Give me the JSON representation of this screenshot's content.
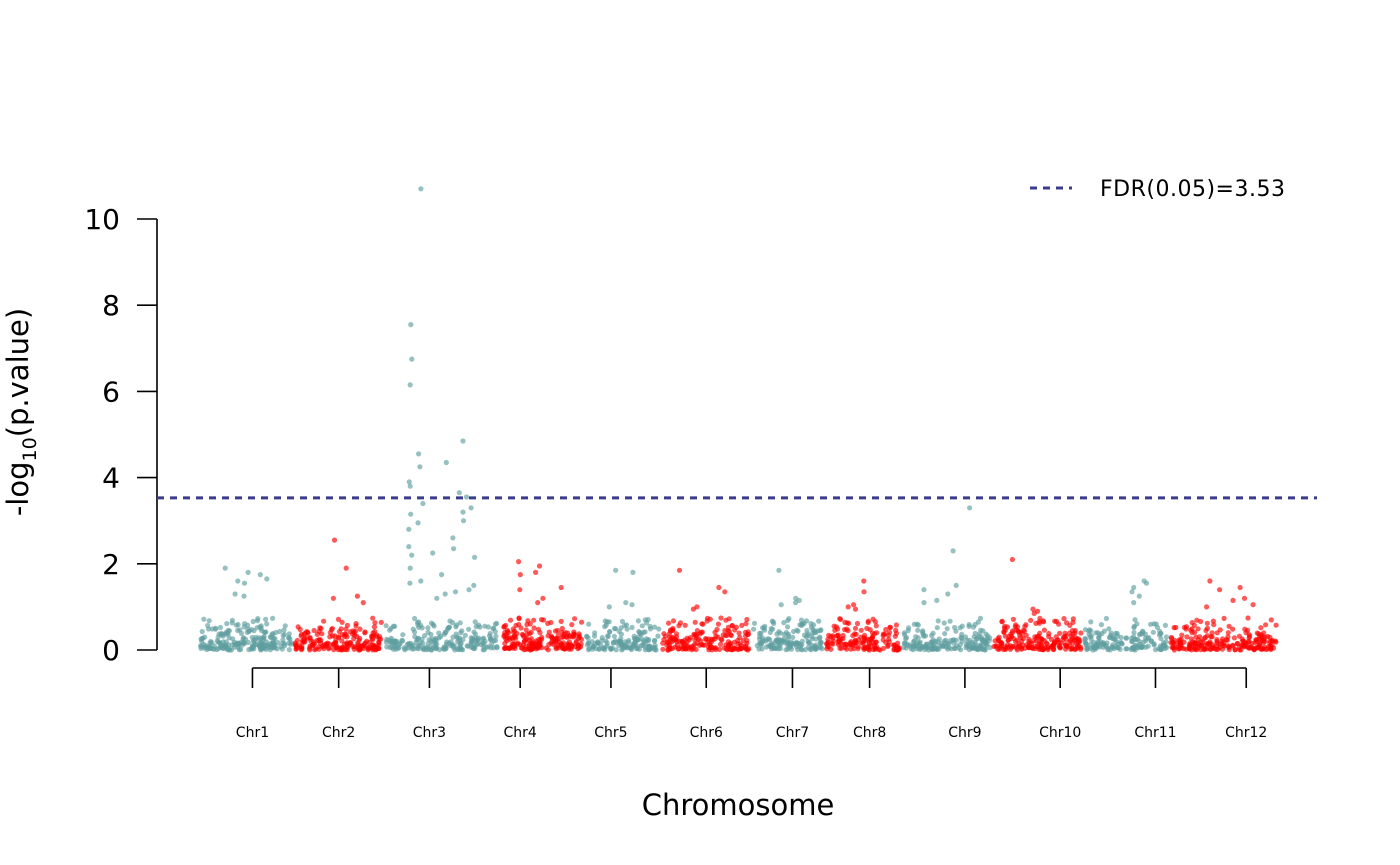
{
  "chart_data": {
    "type": "scatter",
    "title": "",
    "xlabel": "Chromosome",
    "ylabel": {
      "prefix": "-log",
      "subscript": "10",
      "suffix": "(p.value)"
    },
    "ylim": [
      0,
      11
    ],
    "yticks": [
      0,
      2,
      4,
      6,
      8,
      10
    ],
    "ytick_labels": [
      "0",
      "2",
      "4",
      "6",
      "8",
      "10"
    ],
    "grid": false,
    "colors": {
      "odd_chr": "#5F9EA0",
      "even_chr": "#FF0000",
      "threshold": "#3B3B8F"
    },
    "threshold": {
      "value": 3.53,
      "label": "FDR(0.05)=3.53",
      "legend_position": "top-right"
    },
    "chromosomes": [
      {
        "name": "Chr1",
        "start": 0,
        "end": 1.05,
        "n": 210,
        "peaks": [
          1.75,
          1.65,
          1.6,
          1.55,
          1.9,
          1.8,
          1.3,
          1.25
        ]
      },
      {
        "name": "Chr2",
        "start": 1.05,
        "end": 2.05,
        "n": 190,
        "peaks": [
          2.55,
          1.9,
          1.25,
          1.2,
          1.1
        ]
      },
      {
        "name": "Chr3",
        "start": 2.05,
        "end": 3.35,
        "n": 210,
        "peaks": [
          10.7,
          7.55,
          6.75,
          6.15,
          4.85,
          4.55,
          4.35,
          4.25,
          3.9,
          3.8,
          3.65,
          3.55,
          3.4,
          3.3,
          3.2,
          3.15,
          3.0,
          2.95,
          2.8,
          2.6,
          2.4,
          2.35,
          2.25,
          2.2,
          2.15,
          1.9,
          1.75,
          1.6,
          1.55,
          1.5,
          1.4,
          1.35,
          1.3,
          1.2
        ]
      },
      {
        "name": "Chr4",
        "start": 3.35,
        "end": 4.25,
        "n": 200,
        "peaks": [
          2.05,
          1.95,
          1.8,
          1.75,
          1.45,
          1.4,
          1.2,
          1.1
        ]
      },
      {
        "name": "Chr5",
        "start": 4.25,
        "end": 5.1,
        "n": 150,
        "peaks": [
          1.85,
          1.8,
          1.1,
          1.05,
          1.0
        ]
      },
      {
        "name": "Chr6",
        "start": 5.1,
        "end": 6.1,
        "n": 180,
        "peaks": [
          1.85,
          1.45,
          1.35,
          1.0,
          0.95
        ]
      },
      {
        "name": "Chr7",
        "start": 6.1,
        "end": 6.9,
        "n": 150,
        "peaks": [
          1.85,
          1.2,
          1.15,
          1.1,
          1.05
        ]
      },
      {
        "name": "Chr8",
        "start": 6.9,
        "end": 7.75,
        "n": 150,
        "peaks": [
          1.6,
          1.35,
          1.05,
          1.0,
          0.95
        ]
      },
      {
        "name": "Chr9",
        "start": 7.75,
        "end": 8.75,
        "n": 180,
        "peaks": [
          3.3,
          2.3,
          1.5,
          1.4,
          1.3,
          1.15,
          1.1
        ]
      },
      {
        "name": "Chr10",
        "start": 8.75,
        "end": 9.75,
        "n": 200,
        "peaks": [
          2.1,
          0.95,
          0.9,
          0.85
        ]
      },
      {
        "name": "Chr11",
        "start": 9.75,
        "end": 10.7,
        "n": 160,
        "peaks": [
          1.6,
          1.55,
          1.45,
          1.35,
          1.25,
          1.1
        ]
      },
      {
        "name": "Chr12",
        "start": 10.7,
        "end": 11.9,
        "n": 220,
        "peaks": [
          1.6,
          1.45,
          1.4,
          1.2,
          1.15,
          1.05,
          1.0
        ]
      }
    ],
    "chr_tick_positions": [
      0.6,
      1.55,
      2.55,
      3.55,
      4.55,
      5.6,
      6.55,
      7.4,
      8.45,
      9.5,
      10.55,
      11.55
    ]
  }
}
